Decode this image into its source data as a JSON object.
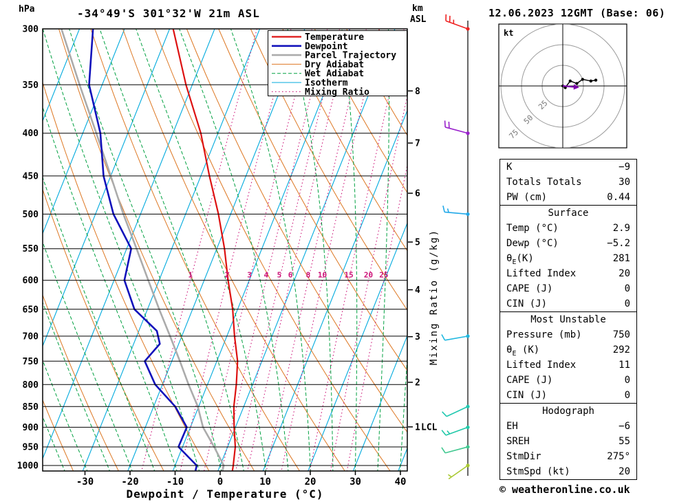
{
  "header": {
    "station_title": "-34°49'S 301°32'W 21m ASL",
    "datetime_title": "12.06.2023 12GMT (Base: 06)",
    "pressure_unit": "hPa",
    "km_unit": "km",
    "asl_unit": "ASL"
  },
  "style": {
    "isotherm": "#00aadd",
    "dry_adiabat": "#dd7722",
    "wet_adiabat": "#00a040",
    "mixing_ratio": "#cc1177",
    "temperature": "#dd1111",
    "dewpoint": "#1111bb",
    "parcel": "#ababab"
  },
  "legend": {
    "items": [
      {
        "label": "Temperature",
        "color": "#dd1111",
        "dash": "",
        "width": 2.2
      },
      {
        "label": "Dewpoint",
        "color": "#1111bb",
        "dash": "",
        "width": 2.6
      },
      {
        "label": "Parcel Trajectory",
        "color": "#ababab",
        "dash": "",
        "width": 2.6
      },
      {
        "label": "Dry Adiabat",
        "color": "#dd7722",
        "dash": "",
        "width": 1
      },
      {
        "label": "Wet Adiabat",
        "color": "#00a040",
        "dash": "5,3",
        "width": 1
      },
      {
        "label": "Isotherm",
        "color": "#00aadd",
        "dash": "",
        "width": 1
      },
      {
        "label": "Mixing Ratio",
        "color": "#cc1177",
        "dash": "1.5,3.5",
        "width": 1.2
      }
    ]
  },
  "axes": {
    "pressure_ticks": [
      300,
      350,
      400,
      450,
      500,
      550,
      600,
      650,
      700,
      750,
      800,
      850,
      900,
      950,
      1000
    ],
    "temp_ticks": [
      -30,
      -20,
      -10,
      0,
      10,
      20,
      30,
      40
    ],
    "xlabel": "Dewpoint / Temperature (°C)",
    "mixing_ratio_axis_label": "Mixing Ratio (g/kg)",
    "mixing_ratio_label_p": 600,
    "km_levels": [
      {
        "km": 8,
        "p": 356
      },
      {
        "km": 7,
        "p": 411
      },
      {
        "km": 6,
        "p": 472
      },
      {
        "km": 5,
        "p": 540
      },
      {
        "km": 4,
        "p": 616
      },
      {
        "km": 3,
        "p": 701
      },
      {
        "km": 2,
        "p": 795
      },
      {
        "km": 1,
        "p": 899
      }
    ],
    "lcl": {
      "label": "LCL",
      "p": 899
    }
  },
  "chart_data": {
    "type": "line",
    "title": "Skew-T log-P sounding",
    "pressure_range_hpa": [
      300,
      1015
    ],
    "background": {
      "isotherms_c": {
        "min": -80,
        "max": 40,
        "step": 10
      },
      "dry_adiabats_k": {
        "min": 230,
        "max": 400,
        "step": 10
      },
      "wet_adiabats_c": {
        "min": -40,
        "max": 40,
        "step": 5
      },
      "mixing_ratio_gkg": [
        1,
        2,
        3,
        4,
        5,
        6,
        8,
        10,
        15,
        20,
        25
      ]
    },
    "series": [
      {
        "name": "Temperature",
        "color": "#dd1111",
        "width": 2.2,
        "points_p_T": [
          [
            1015,
            3.2
          ],
          [
            1000,
            2.9
          ],
          [
            950,
            1.7
          ],
          [
            900,
            -0.3
          ],
          [
            850,
            -2.2
          ],
          [
            800,
            -3.6
          ],
          [
            750,
            -5.4
          ],
          [
            700,
            -8.3
          ],
          [
            650,
            -11.1
          ],
          [
            600,
            -14.7
          ],
          [
            550,
            -18.3
          ],
          [
            500,
            -22.7
          ],
          [
            450,
            -28.1
          ],
          [
            400,
            -33.8
          ],
          [
            350,
            -41.4
          ],
          [
            300,
            -49.2
          ]
        ]
      },
      {
        "name": "Dewpoint",
        "color": "#1111bb",
        "width": 2.6,
        "points_p_T": [
          [
            1015,
            -5.0
          ],
          [
            1000,
            -5.2
          ],
          [
            950,
            -10.9
          ],
          [
            900,
            -10.8
          ],
          [
            850,
            -15.2
          ],
          [
            800,
            -21.6
          ],
          [
            750,
            -26.0
          ],
          [
            715,
            -24.2
          ],
          [
            690,
            -26.0
          ],
          [
            650,
            -32.9
          ],
          [
            600,
            -37.7
          ],
          [
            550,
            -39.0
          ],
          [
            500,
            -46.0
          ],
          [
            450,
            -51.6
          ],
          [
            400,
            -56.1
          ],
          [
            350,
            -62.9
          ],
          [
            300,
            -67.0
          ]
        ]
      },
      {
        "name": "Parcel Trajectory",
        "color": "#ababab",
        "width": 2.6,
        "points_p_T": [
          [
            1015,
            1.0
          ],
          [
            1000,
            0.8
          ],
          [
            950,
            -3.0
          ],
          [
            900,
            -7.2
          ],
          [
            850,
            -10.2
          ],
          [
            800,
            -14.2
          ],
          [
            750,
            -18.2
          ],
          [
            700,
            -22.6
          ],
          [
            650,
            -27.4
          ],
          [
            600,
            -32.4
          ],
          [
            550,
            -37.8
          ],
          [
            500,
            -43.8
          ],
          [
            450,
            -50.0
          ],
          [
            400,
            -57.0
          ],
          [
            350,
            -65.0
          ],
          [
            300,
            -74.0
          ]
        ]
      }
    ]
  },
  "wind_barbs": [
    {
      "p": 300,
      "color": "#ee2222",
      "speed_kt": 25,
      "dir_deg": 290
    },
    {
      "p": 400,
      "color": "#9920cc",
      "speed_kt": 20,
      "dir_deg": 285
    },
    {
      "p": 500,
      "color": "#20a8e8",
      "speed_kt": 15,
      "dir_deg": 275
    },
    {
      "p": 700,
      "color": "#20b8e0",
      "speed_kt": 10,
      "dir_deg": 260
    },
    {
      "p": 850,
      "color": "#20c8b0",
      "speed_kt": 10,
      "dir_deg": 245
    },
    {
      "p": 900,
      "color": "#20c8a8",
      "speed_kt": 15,
      "dir_deg": 250
    },
    {
      "p": 950,
      "color": "#40c890",
      "speed_kt": 10,
      "dir_deg": 255
    },
    {
      "p": 1000,
      "color": "#a8c830",
      "speed_kt": 5,
      "dir_deg": 235
    }
  ],
  "hodograph": {
    "unit_label": "kt",
    "rings_kt": [
      25,
      50,
      75
    ],
    "trace_uv_kt": [
      [
        3,
        -2
      ],
      [
        9,
        6
      ],
      [
        17,
        3
      ],
      [
        24,
        8
      ],
      [
        34,
        6
      ],
      [
        40,
        7
      ]
    ],
    "storm_motion": {
      "dir_deg": 275,
      "spd_kt": 20
    }
  },
  "tables": {
    "indices": {
      "rows": [
        {
          "label": "K",
          "value": "−9"
        },
        {
          "label": "Totals Totals",
          "value": "30"
        },
        {
          "label": "PW (cm)",
          "value": "0.44"
        }
      ]
    },
    "surface": {
      "title": "Surface",
      "rows": [
        {
          "label": "Temp (°C)",
          "value": "2.9"
        },
        {
          "label": "Dewp (°C)",
          "value": "−5.2"
        },
        {
          "label_pre": "θ",
          "label_sub": "E",
          "label_post": "(K)",
          "value": "281"
        },
        {
          "label": "Lifted Index",
          "value": "20"
        },
        {
          "label": "CAPE (J)",
          "value": "0"
        },
        {
          "label": "CIN (J)",
          "value": "0"
        }
      ]
    },
    "most_unstable": {
      "title": "Most Unstable",
      "rows": [
        {
          "label": "Pressure (mb)",
          "value": "750"
        },
        {
          "label_pre": "θ",
          "label_sub": "E",
          "label_post": " (K)",
          "value": "292"
        },
        {
          "label": "Lifted Index",
          "value": "11"
        },
        {
          "label": "CAPE (J)",
          "value": "0"
        },
        {
          "label": "CIN (J)",
          "value": "0"
        }
      ]
    },
    "hodograph": {
      "title": "Hodograph",
      "rows": [
        {
          "label": "EH",
          "value": "−6"
        },
        {
          "label": "SREH",
          "value": "55"
        },
        {
          "label": "StmDir",
          "value": "275°"
        },
        {
          "label": "StmSpd (kt)",
          "value": "20"
        }
      ]
    }
  },
  "footer": {
    "copyright": "© weatheronline.co.uk"
  }
}
